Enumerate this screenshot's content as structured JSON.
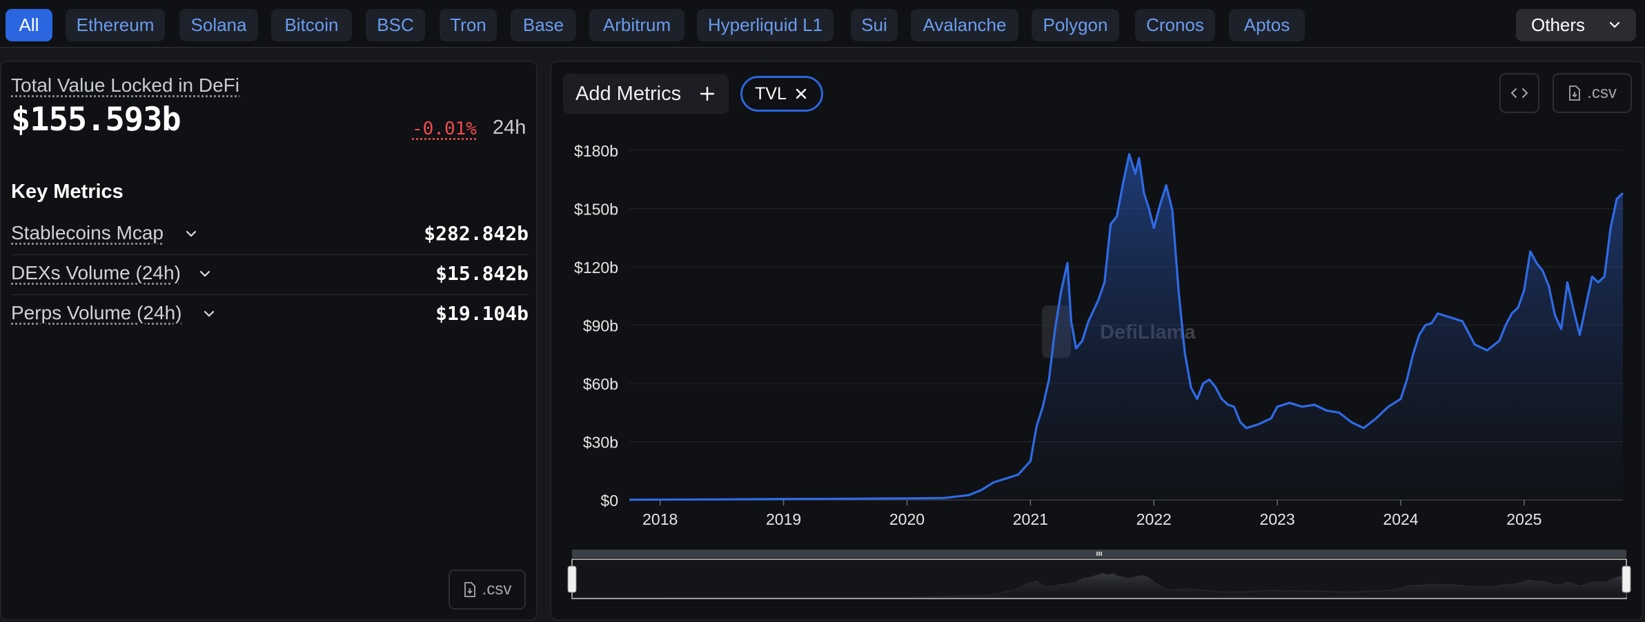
{
  "chains": {
    "items": [
      "All",
      "Ethereum",
      "Solana",
      "Bitcoin",
      "BSC",
      "Tron",
      "Base",
      "Arbitrum",
      "Hyperliquid L1",
      "Sui",
      "Avalanche",
      "Polygon",
      "Cronos",
      "Aptos"
    ],
    "selected": "All",
    "others_label": "Others"
  },
  "summary": {
    "tvl_label": "Total Value Locked in DeFi",
    "tvl_value": "$155.593b",
    "change": "-0.01%",
    "change_period": "24h",
    "key_metrics_title": "Key Metrics",
    "metrics": [
      {
        "label": "Stablecoins Mcap",
        "value": "$282.842b"
      },
      {
        "label": "DEXs Volume (24h)",
        "value": "$15.842b"
      },
      {
        "label": "Perps Volume (24h)",
        "value": "$19.104b"
      }
    ],
    "csv_label": ".csv"
  },
  "toolbar": {
    "add_metrics_label": "Add Metrics",
    "active_metric": "TVL",
    "csv_label": ".csv"
  },
  "colors": {
    "accent": "#2a66e0",
    "line": "#2e6be6",
    "negative": "#f04b4b",
    "background": "#101114"
  },
  "watermark": "DefiLlama",
  "chart_data": {
    "type": "area",
    "ylabel": "",
    "xlabel": "",
    "ylim": [
      0,
      180
    ],
    "y_ticks": [
      "$0",
      "$30b",
      "$60b",
      "$90b",
      "$120b",
      "$150b",
      "$180b"
    ],
    "y_tick_values": [
      0,
      30,
      60,
      90,
      120,
      150,
      180
    ],
    "x_ticks": [
      "2018",
      "2019",
      "2020",
      "2021",
      "2022",
      "2023",
      "2024",
      "2025"
    ],
    "x_tick_values": [
      2018.0,
      2019.0,
      2020.0,
      2021.0,
      2022.0,
      2023.0,
      2024.0,
      2025.0
    ],
    "xlim": [
      2017.75,
      2025.8
    ],
    "grid": true,
    "series": [
      {
        "name": "TVL",
        "units": "USD billions",
        "x": [
          2017.75,
          2018.5,
          2019.0,
          2019.5,
          2020.0,
          2020.3,
          2020.5,
          2020.6,
          2020.7,
          2020.8,
          2020.9,
          2021.0,
          2021.05,
          2021.1,
          2021.15,
          2021.2,
          2021.25,
          2021.3,
          2021.33,
          2021.37,
          2021.42,
          2021.47,
          2021.5,
          2021.55,
          2021.6,
          2021.65,
          2021.7,
          2021.75,
          2021.8,
          2021.85,
          2021.88,
          2021.92,
          2021.96,
          2022.0,
          2022.05,
          2022.1,
          2022.15,
          2022.2,
          2022.25,
          2022.3,
          2022.35,
          2022.4,
          2022.45,
          2022.5,
          2022.55,
          2022.6,
          2022.65,
          2022.7,
          2022.75,
          2022.85,
          2022.95,
          2023.0,
          2023.1,
          2023.2,
          2023.3,
          2023.4,
          2023.5,
          2023.6,
          2023.7,
          2023.8,
          2023.9,
          2024.0,
          2024.05,
          2024.1,
          2024.15,
          2024.2,
          2024.25,
          2024.3,
          2024.4,
          2024.5,
          2024.6,
          2024.7,
          2024.8,
          2024.85,
          2024.9,
          2024.95,
          2025.0,
          2025.05,
          2025.1,
          2025.15,
          2025.2,
          2025.25,
          2025.3,
          2025.35,
          2025.4,
          2025.45,
          2025.5,
          2025.55,
          2025.6,
          2025.65,
          2025.7,
          2025.75,
          2025.8
        ],
        "y": [
          0.1,
          0.3,
          0.5,
          0.6,
          0.8,
          1.0,
          2.5,
          5,
          9,
          11,
          13,
          20,
          38,
          48,
          62,
          88,
          108,
          122,
          92,
          78,
          82,
          92,
          96,
          103,
          112,
          142,
          146,
          163,
          178,
          168,
          176,
          158,
          150,
          140,
          152,
          162,
          149,
          108,
          76,
          58,
          52,
          60,
          62,
          58,
          52,
          49,
          48,
          40,
          37,
          39,
          42,
          48,
          50,
          48,
          49,
          46,
          45,
          40,
          37,
          42,
          48,
          52,
          62,
          75,
          85,
          90,
          91,
          96,
          94,
          92,
          80,
          77,
          82,
          90,
          96,
          99,
          108,
          128,
          122,
          118,
          110,
          95,
          88,
          112,
          98,
          85,
          100,
          115,
          112,
          115,
          140,
          155,
          158
        ]
      }
    ]
  }
}
